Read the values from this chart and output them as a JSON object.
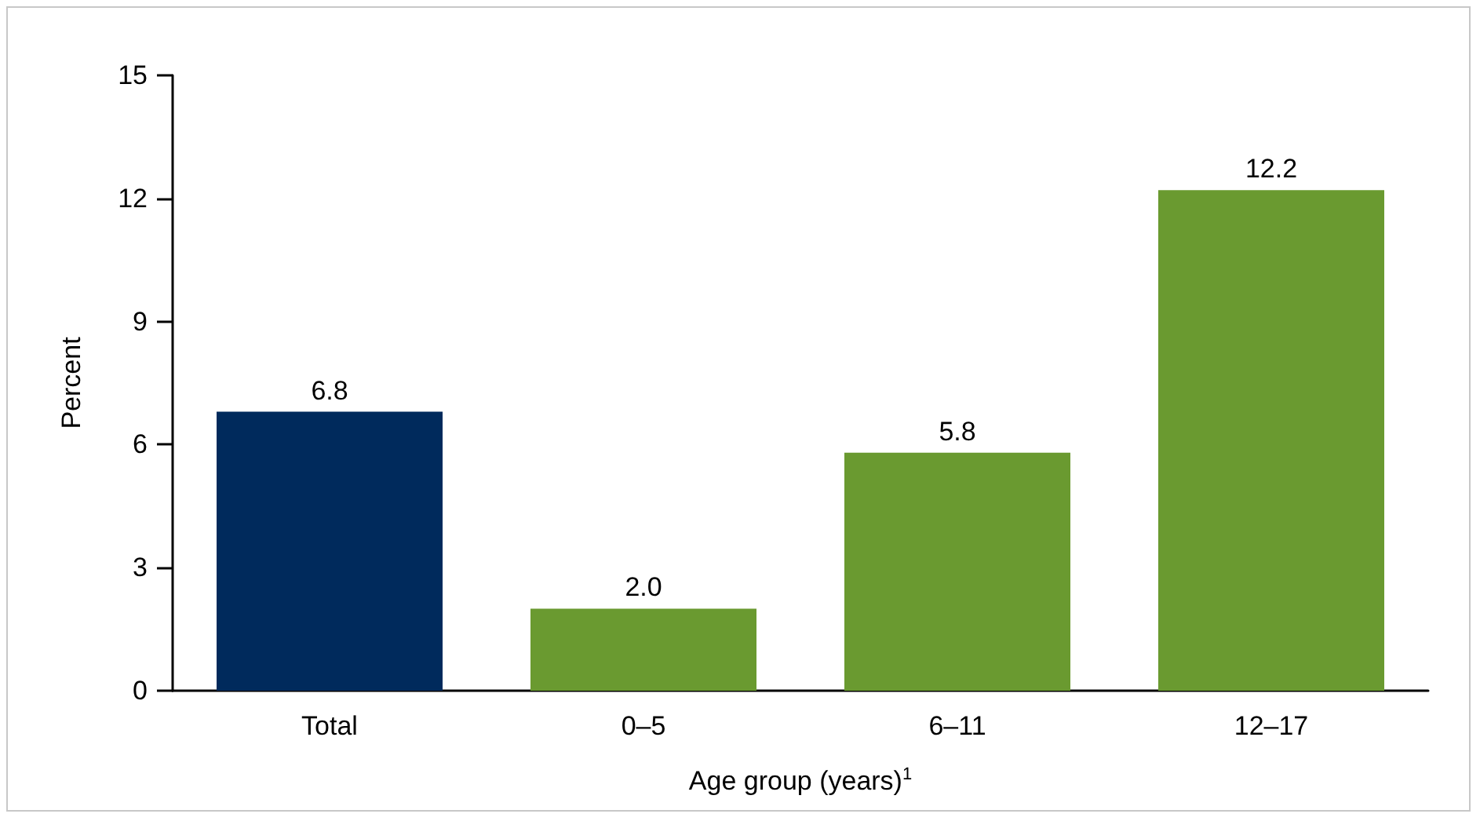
{
  "chart_data": {
    "type": "bar",
    "xlabel": "Age group (years)$^{1}$",
    "ylabel": "Percent",
    "categories": [
      "Total",
      "0–5",
      "6–11",
      "12–17"
    ],
    "values": [
      6.8,
      2.0,
      5.8,
      12.2
    ],
    "colors": [
      "#002a5c",
      "#6a9a30",
      "#6a9a30",
      "#6a9a30"
    ],
    "value_labels": [
      "6.8",
      "2.0",
      "5.8",
      "12.2"
    ],
    "ylim": [
      0,
      15
    ],
    "yticks": [
      0,
      3,
      6,
      9,
      12,
      15
    ]
  }
}
